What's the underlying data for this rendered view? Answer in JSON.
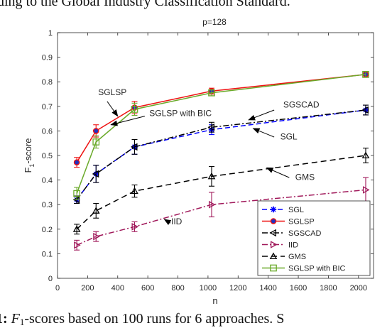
{
  "caption_top": "ding to the Global Industry Classification Standard.",
  "caption_bottom": {
    "fig_num": "1",
    "colon": ": ",
    "f_letter": "F",
    "rest": "-scores based on 100 runs for 6 approaches.  S"
  },
  "chart_data": {
    "type": "line",
    "title": "p=128",
    "xlabel": "n",
    "ylabel": "F_1-score",
    "ylabel_main": "F",
    "ylabel_sub": "1",
    "ylabel_rest": "-score",
    "xlim": [
      0,
      2100
    ],
    "ylim": [
      0,
      1
    ],
    "xticks": [
      0,
      200,
      400,
      600,
      800,
      1000,
      1200,
      1400,
      1600,
      1800,
      2000
    ],
    "yticks": [
      0,
      0.1,
      0.2,
      0.3,
      0.4,
      0.5,
      0.6,
      0.7,
      0.8,
      0.9,
      1
    ],
    "ytick_labels": [
      "0",
      "0.1",
      "0.2",
      "0.3",
      "0.4",
      "0.5",
      "0.6",
      "0.7",
      "0.8",
      "0.9",
      "1"
    ],
    "grid": false,
    "legend_position": "bottom-right",
    "x": [
      128,
      256,
      512,
      1024,
      2048
    ],
    "series": [
      {
        "name": "SGL",
        "color": "#0000ff",
        "dash": "7,4",
        "marker": "star",
        "values": [
          0.32,
          0.425,
          0.535,
          0.605,
          0.685
        ],
        "err": [
          0.015,
          0.035,
          0.03,
          0.02,
          0.02
        ]
      },
      {
        "name": "SGLSP",
        "color": "#ee1111",
        "dash": "",
        "marker": "circle",
        "values": [
          0.472,
          0.6,
          0.695,
          0.762,
          0.83
        ],
        "err": [
          0.02,
          0.025,
          0.025,
          0.012,
          0.012
        ]
      },
      {
        "name": "SGSCAD",
        "color": "#000000",
        "dash": "8,3,2,3",
        "marker": "triangle-left",
        "values": [
          0.32,
          0.425,
          0.535,
          0.615,
          0.685
        ],
        "err": [
          0.015,
          0.035,
          0.03,
          0.02,
          0.02
        ]
      },
      {
        "name": "IID",
        "color": "#a0185a",
        "dash": "8,3,2,3",
        "marker": "triangle-right",
        "values": [
          0.135,
          0.17,
          0.21,
          0.3,
          0.36
        ],
        "err": [
          0.02,
          0.02,
          0.02,
          0.05,
          0.05
        ]
      },
      {
        "name": "GMS",
        "color": "#000000",
        "dash": "8,5",
        "marker": "triangle-up",
        "values": [
          0.2,
          0.275,
          0.355,
          0.415,
          0.5
        ],
        "err": [
          0.02,
          0.03,
          0.025,
          0.04,
          0.03
        ]
      },
      {
        "name": "SGLSP with BIC",
        "color": "#6aaa2a",
        "dash": "",
        "marker": "square",
        "values": [
          0.345,
          0.555,
          0.688,
          0.755,
          0.83
        ],
        "err": [
          0.025,
          0.025,
          0.025,
          0.012,
          0.012
        ]
      }
    ],
    "annotations": [
      {
        "text": "SGLSP",
        "x": 270,
        "y": 0.745,
        "tip_x": 400,
        "tip_y": 0.66,
        "tail_x": 330,
        "tail_y": 0.72
      },
      {
        "text": "SGLSP with BIC",
        "x": 610,
        "y": 0.66,
        "tip_x": 355,
        "tip_y": 0.625,
        "tail_x": 580,
        "tail_y": 0.66
      },
      {
        "text": "SGSCAD",
        "x": 1500,
        "y": 0.695,
        "tip_x": 1270,
        "tip_y": 0.645,
        "tail_x": 1440,
        "tail_y": 0.685
      },
      {
        "text": "SGL",
        "x": 1480,
        "y": 0.565,
        "tip_x": 1300,
        "tip_y": 0.61,
        "tail_x": 1440,
        "tail_y": 0.575
      },
      {
        "text": "GMS",
        "x": 1580,
        "y": 0.4,
        "tip_x": 1390,
        "tip_y": 0.45,
        "tail_x": 1540,
        "tail_y": 0.41
      },
      {
        "text": "IID",
        "x": 755,
        "y": 0.22,
        "tip_x": 710,
        "tip_y": 0.24,
        "tail_x": 750,
        "tail_y": 0.225
      }
    ]
  }
}
